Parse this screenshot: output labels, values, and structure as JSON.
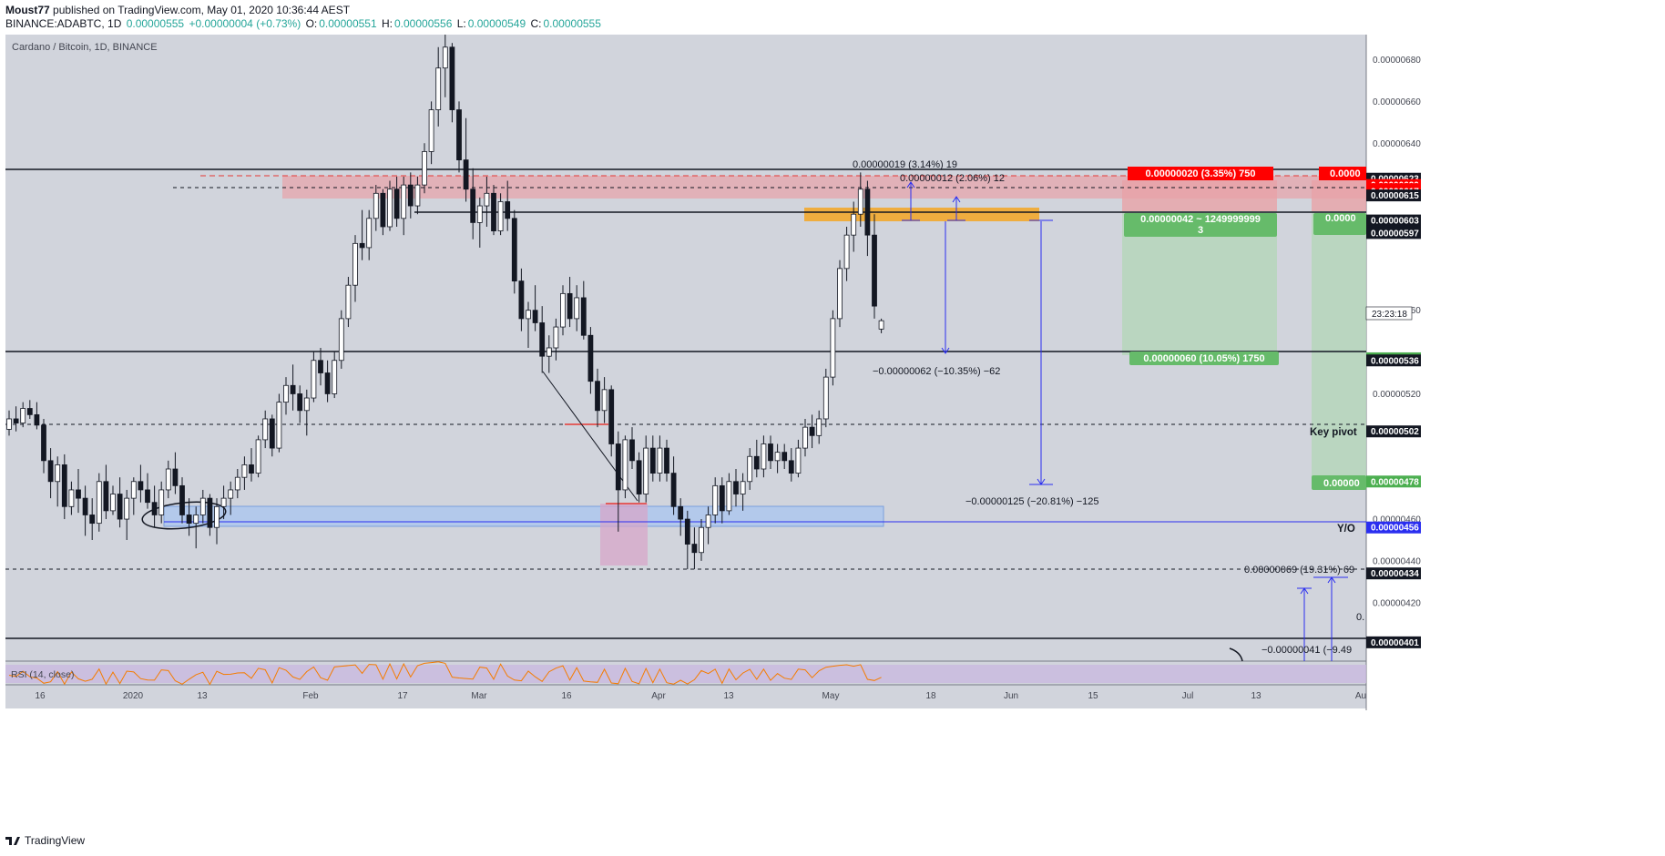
{
  "header": {
    "author": "Moust77",
    "published_text": "published on TradingView.com, May 01, 2020 10:36:44 AEST",
    "symbol": "BINANCE:ADABTC, 1D",
    "last": "0.00000555",
    "change": "+0.00000004 (+0.73%)",
    "o_label": "O:",
    "o_value": "0.00000551",
    "h_label": "H:",
    "h_value": "0.00000556",
    "l_label": "L:",
    "l_value": "0.00000549",
    "c_label": "C:",
    "c_value": "0.00000555"
  },
  "chart_title": "Cardano / Bitcoin, 1D, BINANCE",
  "rsi_label": "RSI (14, close)",
  "countdown": "23:23:18",
  "footer_brand": "TradingView",
  "colors": {
    "up": "#26a69a",
    "down": "#131722",
    "red": "#ff0000",
    "green": "#4caf50",
    "blue": "#2a2ef0",
    "orange": "#f5a623",
    "pink": "#e8a3a8",
    "panel": "#d1d4dc"
  },
  "price_axis_ticks": [
    "0.00000680",
    "0.00000660",
    "0.00000640",
    "0.00000560",
    "0.00000520",
    "0.00000460",
    "0.00000440",
    "0.00000420"
  ],
  "price_labels": [
    {
      "text": "0.00000623",
      "style": "black"
    },
    {
      "text": "0.00000620",
      "style": "red"
    },
    {
      "text": "0.00000618",
      "style": "red"
    },
    {
      "text": "0.00000617",
      "style": "red"
    },
    {
      "text": "0.00000615",
      "style": "black"
    },
    {
      "text": "0.00000603",
      "style": "black"
    },
    {
      "text": "0.00000598",
      "style": "black"
    },
    {
      "text": "0.00000597",
      "style": "black"
    },
    {
      "text": "0.00000537",
      "style": "green"
    },
    {
      "text": "0.00000536",
      "style": "black"
    },
    {
      "text": "0.00000502",
      "style": "black"
    },
    {
      "text": "0.00000478",
      "style": "green"
    },
    {
      "text": "0.00000456",
      "style": "blue"
    },
    {
      "text": "0.00000434",
      "style": "black"
    },
    {
      "text": "0.00000401",
      "style": "black"
    }
  ],
  "time_axis": [
    "16",
    "2020",
    "13",
    "Feb",
    "17",
    "Mar",
    "16",
    "Apr",
    "13",
    "May",
    "18",
    "Jun",
    "15",
    "Jul",
    "13",
    "Au"
  ],
  "annotations": {
    "measure_up_1": "0.00000019 (3.14%) 19",
    "measure_up_2": "0.00000012 (2.06%) 12",
    "measure_down_1": "−0.00000062 (−10.35%) −62",
    "measure_down_2": "−0.00000125 (−20.81%) −125",
    "measure_up_3": "0.00000069 (19.31%) 69",
    "measure_down_3": "−0.00000041 (−9.49",
    "stop_label": "0.00000020 (3.35%) 750",
    "stop_label_cut": "0.0000",
    "target1_label": "0.00000042 ~ 1249999999",
    "target1_sub": "3",
    "target2_label": "0.00000060 (10.05%) 1750",
    "right_green_cut": "0.0000",
    "right_green_cut2": "0.00000",
    "key_pivot": "Key pivot",
    "yo": "Y/O",
    "zero_cut": "0."
  },
  "chart_data": {
    "type": "candlestick",
    "title": "Cardano / Bitcoin, 1D, BINANCE",
    "ylim": [
      3.92e-06,
      6.92e-06
    ],
    "horizontal_levels": [
      6.23e-06,
      6.17e-06,
      6.2e-06,
      6.15e-06,
      5.37e-06,
      5.02e-06,
      4.56e-06,
      4.34e-06,
      4.01e-06
    ],
    "series": [
      {
        "name": "ADABTC",
        "values": [
          [
            503,
            512,
            500,
            508
          ],
          [
            508,
            514,
            502,
            506
          ],
          [
            506,
            516,
            504,
            513
          ],
          [
            513,
            517,
            508,
            510
          ],
          [
            510,
            516,
            503,
            505
          ],
          [
            505,
            508,
            482,
            488
          ],
          [
            488,
            494,
            470,
            478
          ],
          [
            478,
            490,
            466,
            486
          ],
          [
            486,
            491,
            460,
            466
          ],
          [
            466,
            478,
            462,
            474
          ],
          [
            474,
            484,
            463,
            470
          ],
          [
            470,
            476,
            452,
            462
          ],
          [
            462,
            470,
            450,
            458
          ],
          [
            458,
            482,
            454,
            478
          ],
          [
            478,
            486,
            460,
            464
          ],
          [
            464,
            476,
            462,
            472
          ],
          [
            472,
            480,
            456,
            460
          ],
          [
            460,
            474,
            450,
            470
          ],
          [
            470,
            480,
            462,
            478
          ],
          [
            478,
            486,
            468,
            474
          ],
          [
            474,
            482,
            465,
            468
          ],
          [
            468,
            476,
            456,
            462
          ],
          [
            462,
            478,
            458,
            474
          ],
          [
            474,
            488,
            470,
            484
          ],
          [
            484,
            492,
            472,
            476
          ],
          [
            476,
            480,
            458,
            462
          ],
          [
            462,
            470,
            452,
            458
          ],
          [
            458,
            466,
            446,
            462
          ],
          [
            462,
            474,
            458,
            470
          ],
          [
            470,
            472,
            452,
            456
          ],
          [
            456,
            470,
            448,
            466
          ],
          [
            466,
            476,
            460,
            470
          ],
          [
            470,
            478,
            462,
            474
          ],
          [
            474,
            484,
            470,
            480
          ],
          [
            480,
            490,
            474,
            486
          ],
          [
            486,
            494,
            478,
            482
          ],
          [
            482,
            500,
            480,
            498
          ],
          [
            498,
            512,
            494,
            508
          ],
          [
            508,
            510,
            490,
            494
          ],
          [
            494,
            520,
            492,
            516
          ],
          [
            516,
            528,
            510,
            524
          ],
          [
            524,
            534,
            512,
            520
          ],
          [
            520,
            524,
            506,
            512
          ],
          [
            512,
            522,
            500,
            518
          ],
          [
            518,
            540,
            516,
            536
          ],
          [
            536,
            542,
            524,
            530
          ],
          [
            530,
            536,
            516,
            520
          ],
          [
            520,
            540,
            518,
            536
          ],
          [
            536,
            560,
            532,
            556
          ],
          [
            556,
            576,
            552,
            572
          ],
          [
            572,
            596,
            564,
            592
          ],
          [
            592,
            608,
            584,
            590
          ],
          [
            590,
            608,
            584,
            604
          ],
          [
            604,
            620,
            598,
            616
          ],
          [
            616,
            618,
            596,
            600
          ],
          [
            600,
            622,
            598,
            618
          ],
          [
            618,
            624,
            600,
            604
          ],
          [
            604,
            624,
            596,
            620
          ],
          [
            620,
            626,
            604,
            610
          ],
          [
            610,
            624,
            606,
            620
          ],
          [
            620,
            640,
            616,
            636
          ],
          [
            636,
            660,
            630,
            656
          ],
          [
            656,
            686,
            648,
            676
          ],
          [
            676,
            692,
            662,
            686
          ],
          [
            686,
            688,
            650,
            656
          ],
          [
            656,
            660,
            626,
            632
          ],
          [
            632,
            652,
            612,
            618
          ],
          [
            618,
            628,
            594,
            602
          ],
          [
            602,
            614,
            590,
            610
          ],
          [
            610,
            624,
            600,
            616
          ],
          [
            616,
            620,
            596,
            598
          ],
          [
            598,
            616,
            596,
            612
          ],
          [
            612,
            622,
            598,
            604
          ],
          [
            604,
            608,
            568,
            574
          ],
          [
            574,
            580,
            550,
            556
          ],
          [
            556,
            564,
            542,
            560
          ],
          [
            560,
            572,
            550,
            554
          ],
          [
            554,
            562,
            530,
            538
          ],
          [
            538,
            548,
            530,
            542
          ],
          [
            542,
            556,
            536,
            552
          ],
          [
            552,
            572,
            548,
            568
          ],
          [
            568,
            576,
            552,
            556
          ],
          [
            556,
            572,
            550,
            566
          ],
          [
            566,
            574,
            546,
            548
          ],
          [
            548,
            552,
            520,
            526
          ],
          [
            526,
            532,
            504,
            512
          ],
          [
            512,
            528,
            506,
            522
          ],
          [
            522,
            524,
            490,
            496
          ],
          [
            496,
            502,
            454,
            474
          ],
          [
            474,
            500,
            470,
            498
          ],
          [
            498,
            504,
            484,
            488
          ],
          [
            488,
            492,
            468,
            472
          ],
          [
            472,
            500,
            468,
            494
          ],
          [
            494,
            500,
            478,
            482
          ],
          [
            482,
            500,
            478,
            494
          ],
          [
            494,
            498,
            478,
            482
          ],
          [
            482,
            490,
            462,
            466
          ],
          [
            466,
            470,
            452,
            460
          ],
          [
            460,
            464,
            436,
            448
          ],
          [
            448,
            456,
            436,
            444
          ],
          [
            444,
            460,
            440,
            456
          ],
          [
            456,
            466,
            448,
            462
          ],
          [
            462,
            480,
            458,
            476
          ],
          [
            476,
            480,
            458,
            464
          ],
          [
            464,
            482,
            462,
            478
          ],
          [
            478,
            484,
            466,
            472
          ],
          [
            472,
            482,
            464,
            478
          ],
          [
            478,
            494,
            474,
            490
          ],
          [
            490,
            498,
            480,
            484
          ],
          [
            484,
            500,
            480,
            496
          ],
          [
            496,
            500,
            484,
            488
          ],
          [
            488,
            496,
            482,
            492
          ],
          [
            492,
            496,
            484,
            488
          ],
          [
            488,
            494,
            478,
            482
          ],
          [
            482,
            498,
            480,
            494
          ],
          [
            494,
            508,
            490,
            504
          ],
          [
            504,
            510,
            494,
            500
          ],
          [
            500,
            512,
            496,
            508
          ],
          [
            508,
            532,
            504,
            528
          ],
          [
            528,
            560,
            524,
            556
          ],
          [
            556,
            584,
            552,
            580
          ],
          [
            580,
            600,
            574,
            596
          ],
          [
            596,
            612,
            588,
            606
          ],
          [
            606,
            626,
            600,
            618
          ],
          [
            618,
            622,
            586,
            596
          ],
          [
            596,
            606,
            556,
            562
          ],
          [
            551,
            556,
            549,
            555
          ]
        ]
      }
    ]
  }
}
